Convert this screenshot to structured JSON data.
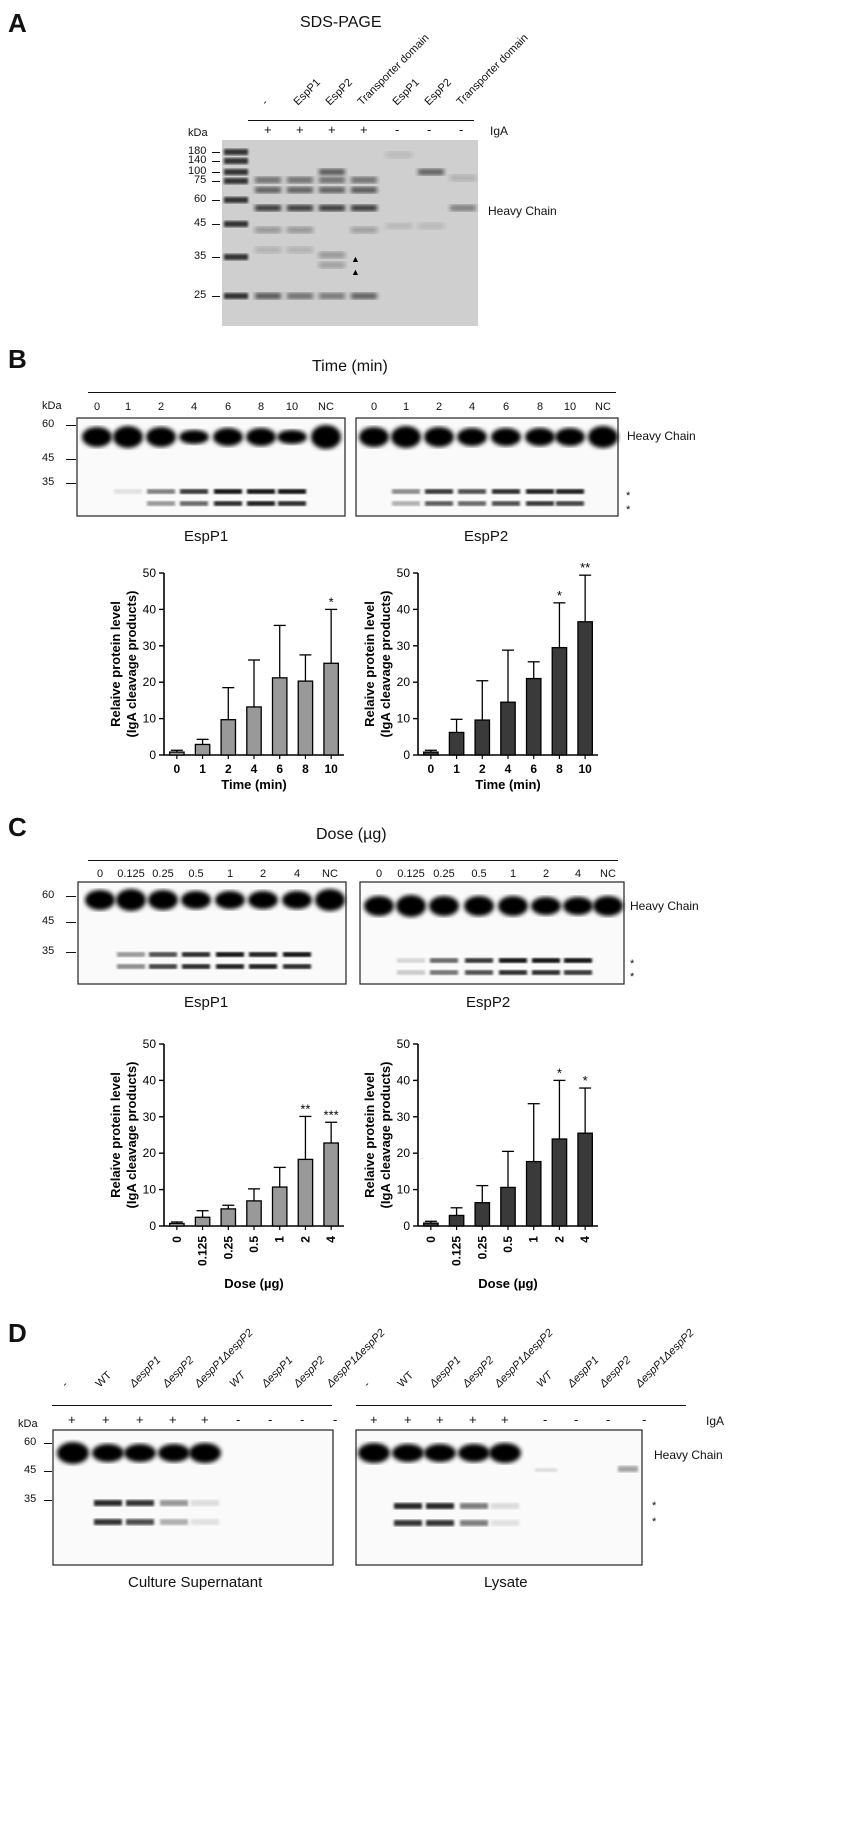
{
  "panelA": {
    "label": "A",
    "title": "SDS-PAGE",
    "lanes": [
      "-",
      "EspP1",
      "EspP2",
      "Transporter domain",
      "EspP1",
      "EspP2",
      "Transporter domain"
    ],
    "iga": [
      "+",
      "+",
      "+",
      "+",
      "-",
      "-",
      "-"
    ],
    "iga_label": "IgA",
    "kda_label": "kDa",
    "markers": [
      "180",
      "140",
      "100",
      "75",
      "60",
      "45",
      "35",
      "25"
    ],
    "band_label": "Heavy Chain"
  },
  "panelB": {
    "label": "B",
    "title": "Time (min)",
    "kda_label": "kDa",
    "lanes": [
      "0",
      "1",
      "2",
      "4",
      "6",
      "8",
      "10",
      "NC"
    ],
    "markers": [
      "60",
      "45",
      "35"
    ],
    "band_label": "Heavy Chain",
    "stars": [
      "*",
      "*"
    ],
    "blot_titles": [
      "EspP1",
      "EspP2"
    ]
  },
  "panelC": {
    "label": "C",
    "title": "Dose (µg)",
    "kda_label": "kDa",
    "lanes": [
      "0",
      "0.125",
      "0.25",
      "0.5",
      "1",
      "2",
      "4",
      "NC"
    ],
    "markers": [
      "60",
      "45",
      "35"
    ],
    "band_label": "Heavy Chain",
    "stars": [
      "*",
      "*"
    ],
    "blot_titles": [
      "EspP1",
      "EspP2"
    ]
  },
  "panelD": {
    "label": "D",
    "lanes": [
      "-",
      "WT",
      "ΔespP1",
      "ΔespP2",
      "ΔespP1ΔespP2",
      "WT",
      "ΔespP1",
      "ΔespP2",
      "ΔespP1ΔespP2"
    ],
    "iga": [
      "+",
      "+",
      "+",
      "+",
      "+",
      "-",
      "-",
      "-",
      "-"
    ],
    "iga_label": "IgA",
    "kda_label": "kDa",
    "markers": [
      "60",
      "45",
      "35"
    ],
    "band_label": "Heavy Chain",
    "stars": [
      "*",
      "*"
    ],
    "blot_titles": [
      "Culture Supernatant",
      "Lysate"
    ]
  },
  "chart_data": [
    {
      "type": "bar",
      "id": "B-EspP1",
      "categories": [
        "0",
        "1",
        "2",
        "4",
        "6",
        "8",
        "10"
      ],
      "values": [
        0.8,
        2.9,
        9.7,
        13.2,
        21.2,
        20.3,
        25.2
      ],
      "errors": [
        0.5,
        1.4,
        8.8,
        12.9,
        14.4,
        7.2,
        14.8
      ],
      "significance": [
        "",
        "",
        "",
        "",
        "",
        "",
        "*"
      ],
      "xlabel": "Time (min)",
      "ylabel": "Relaive protein level\n(IgA cleavage products)",
      "ylim": [
        0,
        50
      ],
      "yticks": [
        0,
        10,
        20,
        30,
        40,
        50
      ],
      "color": "#999999"
    },
    {
      "type": "bar",
      "id": "B-EspP2",
      "categories": [
        "0",
        "1",
        "2",
        "4",
        "6",
        "8",
        "10"
      ],
      "values": [
        0.8,
        6.2,
        9.6,
        14.5,
        21.0,
        29.5,
        36.6
      ],
      "errors": [
        0.5,
        3.6,
        10.8,
        14.3,
        4.6,
        12.3,
        12.8
      ],
      "significance": [
        "",
        "",
        "",
        "",
        "",
        "*",
        "**"
      ],
      "xlabel": "Time (min)",
      "ylabel": "Relaive protein level\n(IgA cleavage products)",
      "ylim": [
        0,
        50
      ],
      "yticks": [
        0,
        10,
        20,
        30,
        40,
        50
      ],
      "color": "#3a3a3a"
    },
    {
      "type": "bar",
      "id": "C-EspP1",
      "categories": [
        "0",
        "0.125",
        "0.25",
        "0.5",
        "1",
        "2",
        "4"
      ],
      "values": [
        0.7,
        2.4,
        4.7,
        6.9,
        10.7,
        18.3,
        22.8
      ],
      "errors": [
        0.4,
        1.8,
        1.0,
        3.3,
        5.4,
        11.8,
        5.7
      ],
      "significance": [
        "",
        "",
        "",
        "",
        "",
        "**",
        "***"
      ],
      "xlabel": "Dose (µg)",
      "ylabel": "Relaive protein level\n(IgA cleavage products)",
      "ylim": [
        0,
        50
      ],
      "yticks": [
        0,
        10,
        20,
        30,
        40,
        50
      ],
      "color": "#999999"
    },
    {
      "type": "bar",
      "id": "C-EspP2",
      "categories": [
        "0",
        "0.125",
        "0.25",
        "0.5",
        "1",
        "2",
        "4"
      ],
      "values": [
        0.8,
        2.9,
        6.4,
        10.6,
        17.7,
        23.9,
        25.5
      ],
      "errors": [
        0.5,
        2.1,
        4.7,
        9.9,
        15.9,
        16.1,
        12.4
      ],
      "significance": [
        "",
        "",
        "",
        "",
        "",
        "*",
        "*"
      ],
      "xlabel": "Dose (µg)",
      "ylabel": "Relaive protein level\n(IgA cleavage products)",
      "ylim": [
        0,
        50
      ],
      "yticks": [
        0,
        10,
        20,
        30,
        40,
        50
      ],
      "color": "#3a3a3a"
    }
  ]
}
